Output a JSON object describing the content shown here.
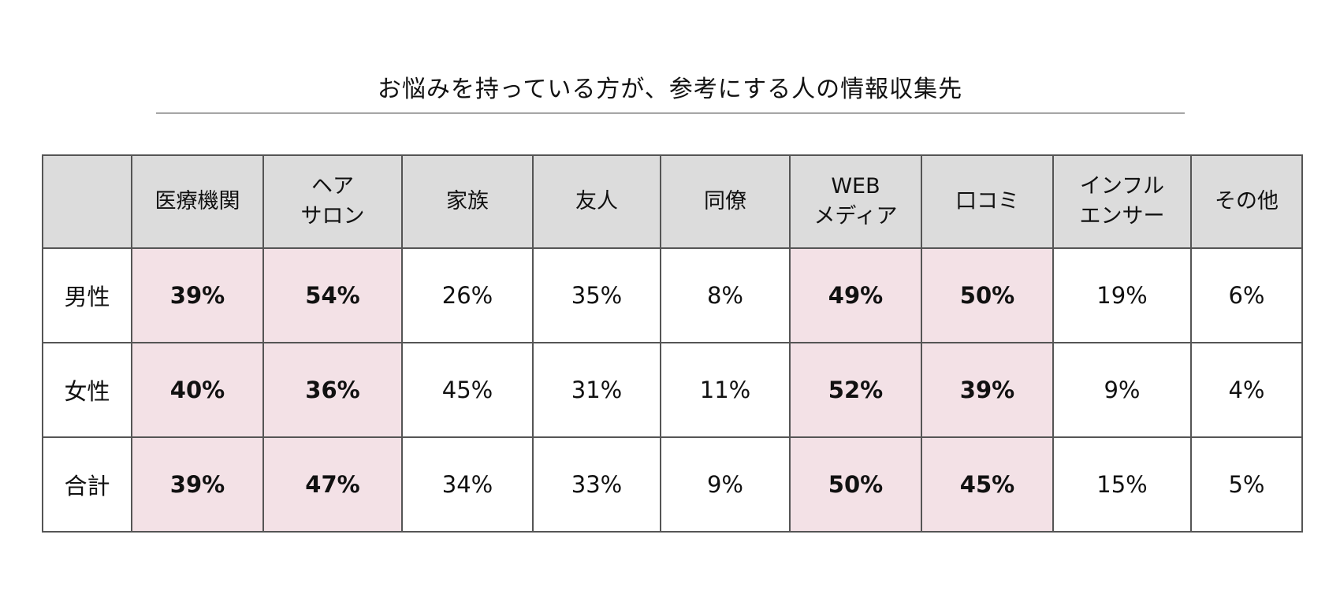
{
  "title": "お悩みを持っている方が、参考にする人の情報収集先",
  "chart_data": {
    "type": "table",
    "title": "お悩みを持っている方が、参考にする人の情報収集先",
    "columns": [
      {
        "lines": [
          "医療機関"
        ]
      },
      {
        "lines": [
          "ヘア",
          "サロン"
        ]
      },
      {
        "lines": [
          "家族"
        ]
      },
      {
        "lines": [
          "友人"
        ]
      },
      {
        "lines": [
          "同僚"
        ]
      },
      {
        "lines": [
          "WEB",
          "メディア"
        ]
      },
      {
        "lines": [
          "口コミ"
        ]
      },
      {
        "lines": [
          "インフル",
          "エンサー"
        ]
      },
      {
        "lines": [
          "その他"
        ]
      }
    ],
    "highlight_color": "#f3e1e6",
    "highlighted_columns": [
      0,
      1,
      5,
      6
    ],
    "rows": [
      {
        "label": "男性",
        "values": [
          "39%",
          "54%",
          "26%",
          "35%",
          "8%",
          "49%",
          "50%",
          "19%",
          "6%"
        ]
      },
      {
        "label": "女性",
        "values": [
          "40%",
          "36%",
          "45%",
          "31%",
          "11%",
          "52%",
          "39%",
          "9%",
          "4%"
        ]
      },
      {
        "label": "合計",
        "values": [
          "39%",
          "47%",
          "34%",
          "33%",
          "9%",
          "50%",
          "45%",
          "15%",
          "5%"
        ]
      }
    ]
  }
}
